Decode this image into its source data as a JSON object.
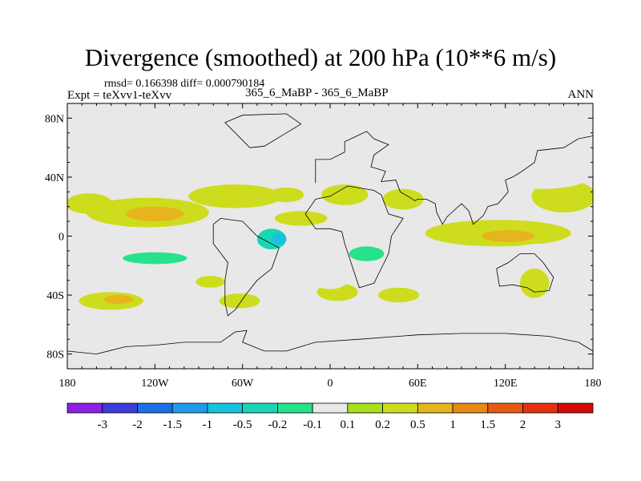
{
  "chart_data": {
    "type": "heatmap",
    "title": "Divergence (smoothed) at 200 hPa (10**6 m/s)",
    "left_annotation": "rmsd= 0.166398 diff= 0.000790184",
    "experiment_label": "Expt = teXvv1-teXvv",
    "center_annotation": "365_6_MaBP - 365_6_MaBP",
    "right_annotation": "ANN",
    "x_range": [
      -180,
      180
    ],
    "y_range": [
      -90,
      90
    ],
    "x_ticks": [
      {
        "value": -180,
        "label": "180"
      },
      {
        "value": -120,
        "label": "120W"
      },
      {
        "value": -60,
        "label": "60W"
      },
      {
        "value": 0,
        "label": "0"
      },
      {
        "value": 60,
        "label": "60E"
      },
      {
        "value": 120,
        "label": "120E"
      },
      {
        "value": 180,
        "label": "180"
      }
    ],
    "y_ticks": [
      {
        "value": 80,
        "label": "80N"
      },
      {
        "value": 40,
        "label": "40N"
      },
      {
        "value": 0,
        "label": "0"
      },
      {
        "value": -40,
        "label": "40S"
      },
      {
        "value": -80,
        "label": "80S"
      }
    ],
    "colorbar": {
      "levels": [
        "-3",
        "-2",
        "-1.5",
        "-1",
        "-0.5",
        "-0.2",
        "-0.1",
        "0.1",
        "0.2",
        "0.5",
        "1",
        "1.5",
        "2",
        "3"
      ],
      "colors": [
        "#8c1ee6",
        "#3c3cd8",
        "#1e6ee6",
        "#1e9bec",
        "#18c2dd",
        "#1ad6b6",
        "#26e28a",
        "#e8e8e8",
        "#a8e01e",
        "#cedc1e",
        "#e6b41c",
        "#e6881a",
        "#e65a16",
        "#e63012",
        "#d40a0a"
      ]
    },
    "background_color": "#e8e8e8",
    "blobs": [
      {
        "lon": -165,
        "lat": 22,
        "rlon": 16,
        "rlat": 7,
        "value": 0.2
      },
      {
        "lon": -125,
        "lat": 16,
        "rlon": 42,
        "rlat": 10,
        "value": 0.2
      },
      {
        "lon": -120,
        "lat": 15,
        "rlon": 20,
        "rlat": 5,
        "value": 0.5
      },
      {
        "lon": -65,
        "lat": 27,
        "rlon": 32,
        "rlat": 8,
        "value": 0.2
      },
      {
        "lon": -30,
        "lat": 28,
        "rlon": 12,
        "rlat": 5,
        "value": 0.2
      },
      {
        "lon": -20,
        "lat": 12,
        "rlon": 18,
        "rlat": 5,
        "value": 0.2
      },
      {
        "lon": 10,
        "lat": 28,
        "rlon": 16,
        "rlat": 7,
        "value": 0.2
      },
      {
        "lon": 50,
        "lat": 25,
        "rlon": 14,
        "rlat": 7,
        "value": 0.2
      },
      {
        "lon": 115,
        "lat": 2,
        "rlon": 50,
        "rlat": 9,
        "value": 0.2
      },
      {
        "lon": 122,
        "lat": 0,
        "rlon": 18,
        "rlat": 4,
        "value": 0.5
      },
      {
        "lon": 160,
        "lat": 27,
        "rlon": 22,
        "rlat": 11,
        "value": 0.2
      },
      {
        "lon": -150,
        "lat": -44,
        "rlon": 22,
        "rlat": 6,
        "value": 0.2
      },
      {
        "lon": -145,
        "lat": -43,
        "rlon": 10,
        "rlat": 3,
        "value": 0.5
      },
      {
        "lon": -82,
        "lat": -31,
        "rlon": 10,
        "rlat": 4,
        "value": 0.2
      },
      {
        "lon": -62,
        "lat": -44,
        "rlon": 14,
        "rlat": 5,
        "value": 0.2
      },
      {
        "lon": 5,
        "lat": -38,
        "rlon": 14,
        "rlat": 6,
        "value": 0.2
      },
      {
        "lon": 47,
        "lat": -40,
        "rlon": 14,
        "rlat": 5,
        "value": 0.2
      },
      {
        "lon": 140,
        "lat": -32,
        "rlon": 10,
        "rlat": 10,
        "value": 0.2
      },
      {
        "lon": -120,
        "lat": -12,
        "rlon": 55,
        "rlat": 10,
        "value": -0.1
      },
      {
        "lon": -120,
        "lat": -15,
        "rlon": 22,
        "rlat": 4,
        "value": -0.2
      },
      {
        "lon": -170,
        "lat": -14,
        "rlon": 12,
        "rlat": 6,
        "value": -0.1
      },
      {
        "lon": -55,
        "lat": -5,
        "rlon": 22,
        "rlat": 9,
        "value": -0.1
      },
      {
        "lon": -40,
        "lat": -2,
        "rlon": 10,
        "rlat": 7,
        "value": -0.5
      },
      {
        "lon": -35,
        "lat": -2,
        "rlon": 5,
        "rlat": 4,
        "value": -1
      },
      {
        "lon": 45,
        "lat": -8,
        "rlon": 32,
        "rlat": 9,
        "value": -0.1
      },
      {
        "lon": 25,
        "lat": -12,
        "rlon": 12,
        "rlat": 5,
        "value": -0.2
      },
      {
        "lon": 150,
        "lat": -12,
        "rlon": 32,
        "rlat": 7,
        "value": -0.1
      },
      {
        "lon": -5,
        "lat": 46,
        "rlon": 6,
        "rlat": 4,
        "value": -0.1
      },
      {
        "lon": 55,
        "lat": 40,
        "rlon": 30,
        "rlat": 7,
        "value": -0.1
      },
      {
        "lon": 145,
        "lat": 40,
        "rlon": 32,
        "rlat": 8,
        "value": -0.1
      },
      {
        "lon": -145,
        "lat": 30,
        "rlon": 12,
        "rlat": 4,
        "value": -0.1
      },
      {
        "lon": -30,
        "lat": -28,
        "rlon": 14,
        "rlat": 7,
        "value": -0.1
      },
      {
        "lon": 0,
        "lat": -30,
        "rlon": 12,
        "rlat": 6,
        "value": -0.1
      }
    ],
    "coastlines": [
      {
        "name": "africa",
        "points": [
          [
            -17,
            15
          ],
          [
            -10,
            25
          ],
          [
            0,
            27
          ],
          [
            12,
            34
          ],
          [
            30,
            31
          ],
          [
            35,
            28
          ],
          [
            40,
            15
          ],
          [
            50,
            12
          ],
          [
            42,
            0
          ],
          [
            40,
            -12
          ],
          [
            35,
            -22
          ],
          [
            30,
            -32
          ],
          [
            20,
            -35
          ],
          [
            15,
            -20
          ],
          [
            10,
            -5
          ],
          [
            8,
            3
          ],
          [
            0,
            5
          ],
          [
            -10,
            5
          ],
          [
            -17,
            15
          ]
        ]
      },
      {
        "name": "south-america",
        "points": [
          [
            -80,
            8
          ],
          [
            -75,
            12
          ],
          [
            -60,
            10
          ],
          [
            -50,
            0
          ],
          [
            -35,
            -8
          ],
          [
            -40,
            -22
          ],
          [
            -50,
            -30
          ],
          [
            -58,
            -40
          ],
          [
            -65,
            -50
          ],
          [
            -70,
            -54
          ],
          [
            -72,
            -45
          ],
          [
            -72,
            -30
          ],
          [
            -70,
            -18
          ],
          [
            -80,
            -5
          ],
          [
            -80,
            8
          ]
        ]
      },
      {
        "name": "eurasia",
        "points": [
          [
            -10,
            36
          ],
          [
            -10,
            52
          ],
          [
            0,
            52
          ],
          [
            10,
            57
          ],
          [
            10,
            64
          ],
          [
            25,
            71
          ],
          [
            30,
            66
          ],
          [
            40,
            62
          ],
          [
            30,
            55
          ],
          [
            28,
            47
          ],
          [
            38,
            44
          ],
          [
            35,
            37
          ],
          [
            45,
            38
          ],
          [
            48,
            30
          ],
          [
            55,
            26
          ],
          [
            58,
            24
          ],
          [
            60,
            25
          ],
          [
            66,
            25
          ],
          [
            72,
            22
          ],
          [
            73,
            16
          ],
          [
            77,
            8
          ],
          [
            80,
            13
          ],
          [
            90,
            22
          ],
          [
            95,
            17
          ],
          [
            98,
            8
          ],
          [
            105,
            14
          ],
          [
            108,
            20
          ],
          [
            115,
            22
          ],
          [
            122,
            30
          ],
          [
            120,
            38
          ],
          [
            125,
            40
          ],
          [
            130,
            43
          ],
          [
            140,
            50
          ],
          [
            142,
            58
          ],
          [
            160,
            60
          ],
          [
            170,
            66
          ],
          [
            180,
            68
          ]
        ]
      },
      {
        "name": "australia",
        "points": [
          [
            114,
            -22
          ],
          [
            116,
            -34
          ],
          [
            125,
            -33
          ],
          [
            135,
            -35
          ],
          [
            140,
            -38
          ],
          [
            150,
            -37
          ],
          [
            153,
            -28
          ],
          [
            146,
            -18
          ],
          [
            140,
            -12
          ],
          [
            135,
            -12
          ],
          [
            130,
            -12
          ],
          [
            122,
            -18
          ],
          [
            114,
            -22
          ]
        ]
      },
      {
        "name": "antarctica",
        "points": [
          [
            -180,
            -78
          ],
          [
            -160,
            -80
          ],
          [
            -140,
            -75
          ],
          [
            -120,
            -74
          ],
          [
            -100,
            -72
          ],
          [
            -75,
            -72
          ],
          [
            -65,
            -65
          ],
          [
            -57,
            -64
          ],
          [
            -60,
            -72
          ],
          [
            -45,
            -78
          ],
          [
            -30,
            -78
          ],
          [
            -10,
            -72
          ],
          [
            20,
            -70
          ],
          [
            60,
            -67
          ],
          [
            90,
            -66
          ],
          [
            120,
            -66
          ],
          [
            150,
            -68
          ],
          [
            170,
            -72
          ],
          [
            180,
            -78
          ]
        ]
      },
      {
        "name": "greenland",
        "points": [
          [
            -55,
            60
          ],
          [
            -45,
            61
          ],
          [
            -30,
            70
          ],
          [
            -20,
            76
          ],
          [
            -30,
            83
          ],
          [
            -60,
            82
          ],
          [
            -72,
            77
          ],
          [
            -55,
            60
          ]
        ]
      }
    ]
  }
}
